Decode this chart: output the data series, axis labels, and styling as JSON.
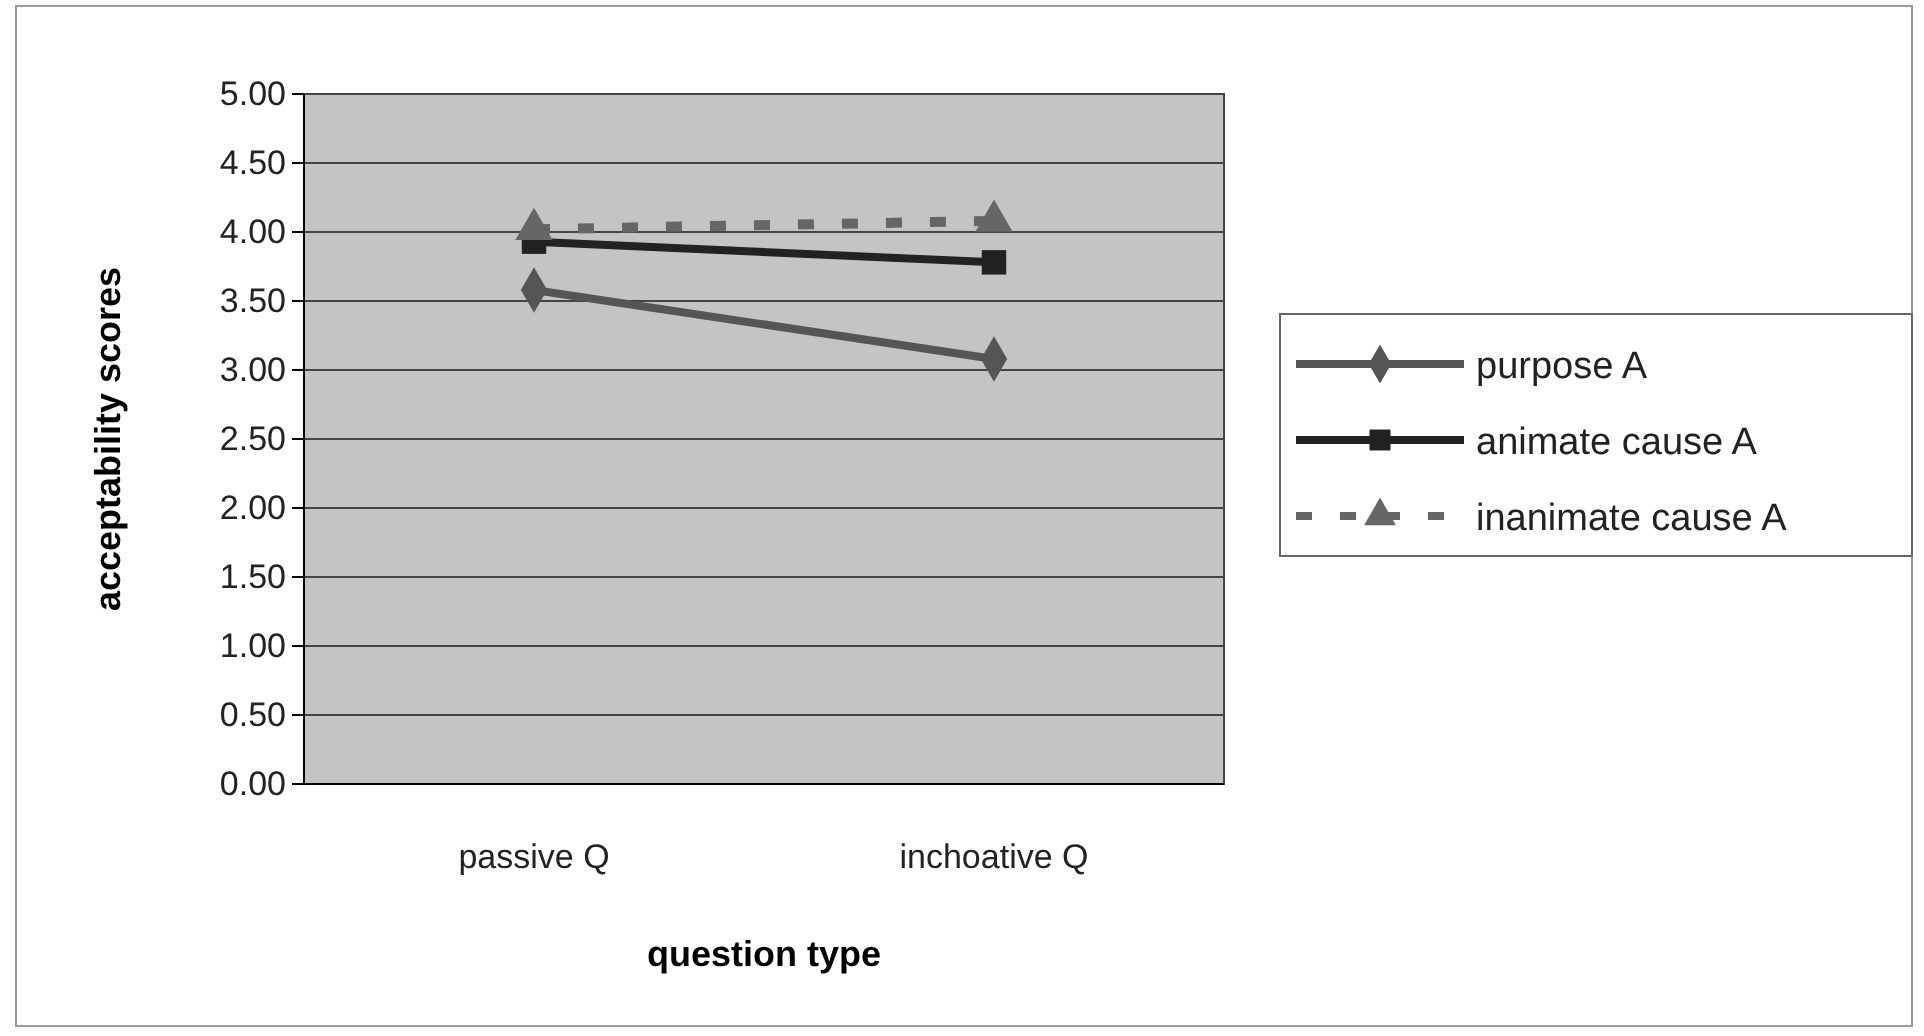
{
  "chart_data": {
    "type": "line",
    "xlabel": "question type",
    "ylabel": "acceptability scores",
    "categories": [
      "passive Q",
      "inchoative Q"
    ],
    "series": [
      {
        "name": "purpose A",
        "color": "#555555",
        "values": [
          3.58,
          3.08
        ],
        "marker": "diamond",
        "line_style": "solid"
      },
      {
        "name": "animate cause A",
        "color": "#222222",
        "values": [
          3.93,
          3.78
        ],
        "marker": "square",
        "line_style": "solid"
      },
      {
        "name": "inanimate cause A",
        "color": "#666666",
        "values": [
          4.02,
          4.08
        ],
        "marker": "triangle",
        "line_style": "dashed"
      }
    ],
    "ylim": [
      0,
      5
    ],
    "yticks": [
      {
        "value": 0,
        "label": "0.00"
      },
      {
        "value": 0.5,
        "label": "0.50"
      },
      {
        "value": 1,
        "label": "1.00"
      },
      {
        "value": 1.5,
        "label": "1.50"
      },
      {
        "value": 2,
        "label": "2.00"
      },
      {
        "value": 2.5,
        "label": "2.50"
      },
      {
        "value": 3,
        "label": "3.00"
      },
      {
        "value": 3.5,
        "label": "3.50"
      },
      {
        "value": 4,
        "label": "4.00"
      },
      {
        "value": 4.5,
        "label": "4.50"
      },
      {
        "value": 5,
        "label": "5.00"
      }
    ],
    "grid": "y",
    "legend": "right"
  }
}
